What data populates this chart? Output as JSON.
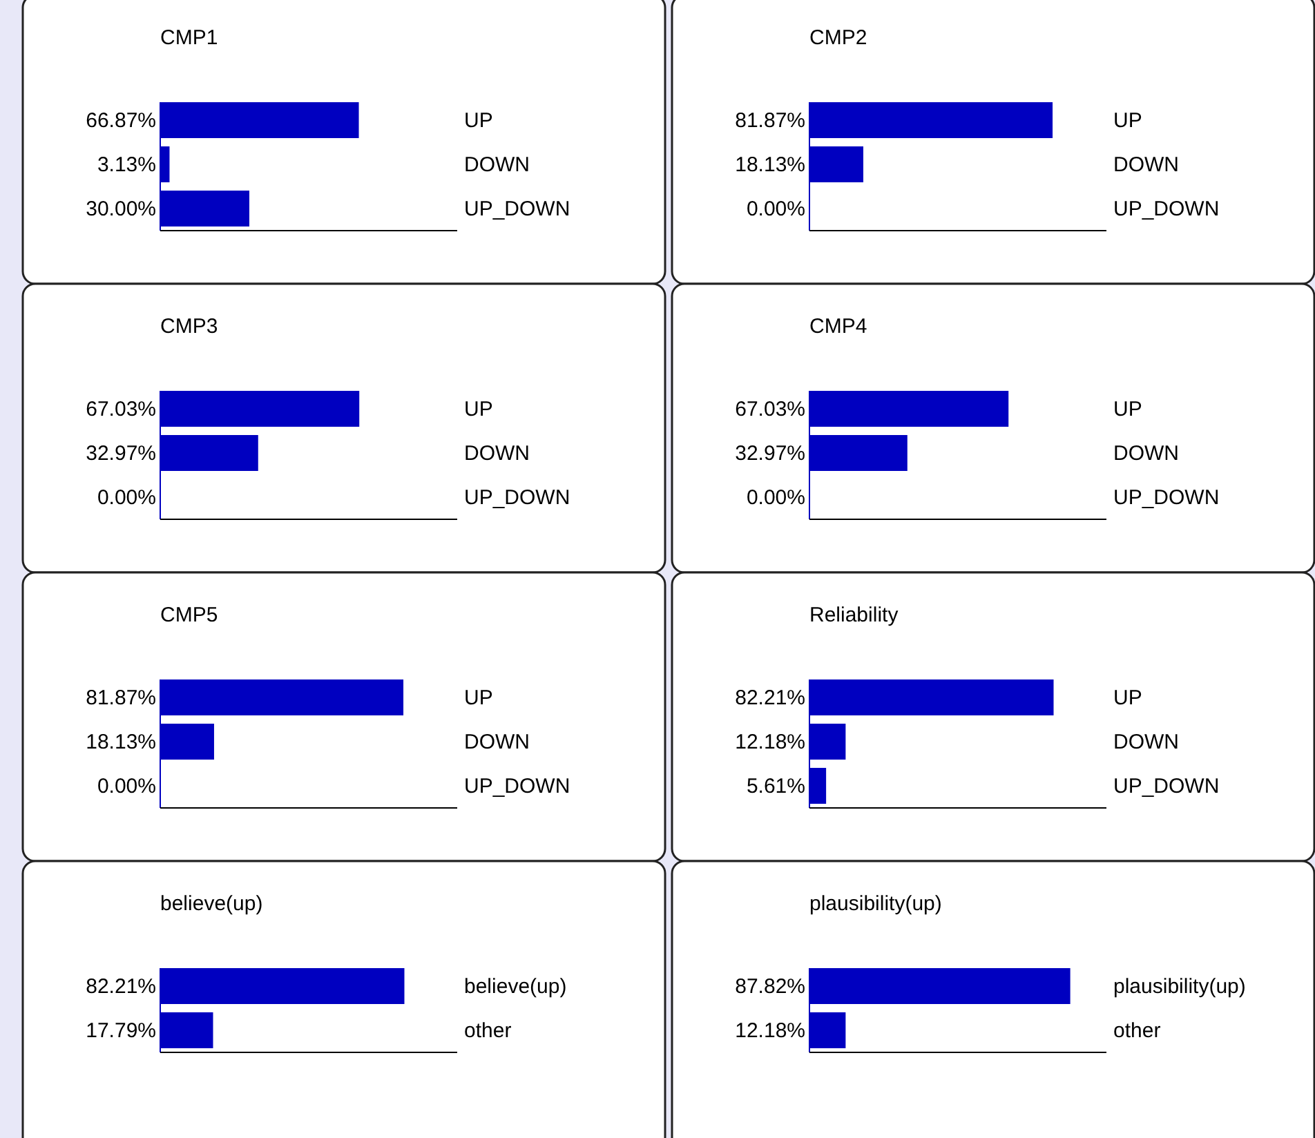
{
  "chart_data": [
    {
      "type": "bar",
      "orientation": "horizontal",
      "title": "CMP1",
      "categories": [
        "UP",
        "DOWN",
        "UP_DOWN"
      ],
      "values": [
        66.87,
        3.13,
        30.0
      ],
      "value_labels": [
        "66.87%",
        "3.13%",
        "30.00%"
      ],
      "xlim": [
        0,
        100
      ],
      "color": "#0000c0"
    },
    {
      "type": "bar",
      "orientation": "horizontal",
      "title": "CMP2",
      "categories": [
        "UP",
        "DOWN",
        "UP_DOWN"
      ],
      "values": [
        81.87,
        18.13,
        0.0
      ],
      "value_labels": [
        "81.87%",
        "18.13%",
        "0.00%"
      ],
      "xlim": [
        0,
        100
      ],
      "color": "#0000c0"
    },
    {
      "type": "bar",
      "orientation": "horizontal",
      "title": "CMP3",
      "categories": [
        "UP",
        "DOWN",
        "UP_DOWN"
      ],
      "values": [
        67.03,
        32.97,
        0.0
      ],
      "value_labels": [
        "67.03%",
        "32.97%",
        "0.00%"
      ],
      "xlim": [
        0,
        100
      ],
      "color": "#0000c0"
    },
    {
      "type": "bar",
      "orientation": "horizontal",
      "title": "CMP4",
      "categories": [
        "UP",
        "DOWN",
        "UP_DOWN"
      ],
      "values": [
        67.03,
        32.97,
        0.0
      ],
      "value_labels": [
        "67.03%",
        "32.97%",
        "0.00%"
      ],
      "xlim": [
        0,
        100
      ],
      "color": "#0000c0"
    },
    {
      "type": "bar",
      "orientation": "horizontal",
      "title": "CMP5",
      "categories": [
        "UP",
        "DOWN",
        "UP_DOWN"
      ],
      "values": [
        81.87,
        18.13,
        0.0
      ],
      "value_labels": [
        "81.87%",
        "18.13%",
        "0.00%"
      ],
      "xlim": [
        0,
        100
      ],
      "color": "#0000c0"
    },
    {
      "type": "bar",
      "orientation": "horizontal",
      "title": "Reliability",
      "categories": [
        "UP",
        "DOWN",
        "UP_DOWN"
      ],
      "values": [
        82.21,
        12.18,
        5.61
      ],
      "value_labels": [
        "82.21%",
        "12.18%",
        "5.61%"
      ],
      "xlim": [
        0,
        100
      ],
      "color": "#0000c0"
    },
    {
      "type": "bar",
      "orientation": "horizontal",
      "title": "believe(up)",
      "categories": [
        "believe(up)",
        "other"
      ],
      "values": [
        82.21,
        17.79
      ],
      "value_labels": [
        "82.21%",
        "17.79%"
      ],
      "xlim": [
        0,
        100
      ],
      "color": "#0000c0"
    },
    {
      "type": "bar",
      "orientation": "horizontal",
      "title": "plausibility(up)",
      "categories": [
        "plausibility(up)",
        "other"
      ],
      "values": [
        87.82,
        12.18
      ],
      "value_labels": [
        "87.82%",
        "12.18%"
      ],
      "xlim": [
        0,
        100
      ],
      "color": "#0000c0"
    }
  ]
}
